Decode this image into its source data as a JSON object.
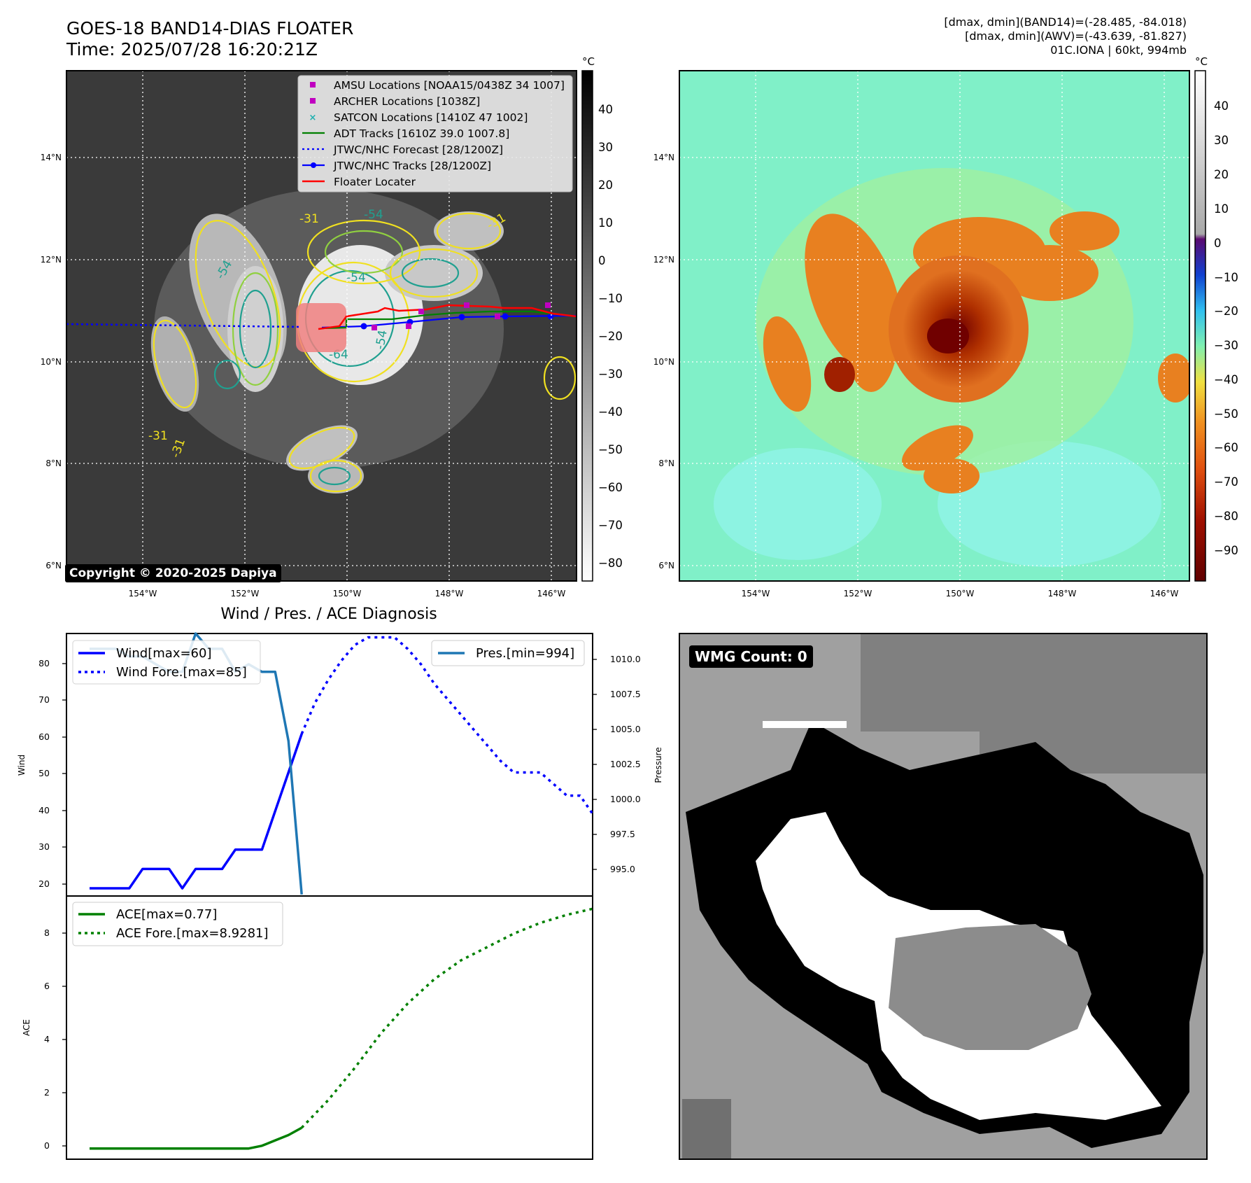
{
  "header": {
    "title_line1": "GOES-18 BAND14-DIAS FLOATER",
    "title_line2": "Time: 2025/07/28 16:20:21Z",
    "right_line1": "[dmax, dmin](BAND14)=(-28.485, -84.018)",
    "right_line2": "[dmax, dmin](AWV)=(-43.639, -81.827)",
    "right_line3": "01C.IONA | 60kt, 994mb"
  },
  "map": {
    "lat_labels": [
      "14°N",
      "12°N",
      "10°N",
      "8°N",
      "6°N"
    ],
    "lon_labels": [
      "154°W",
      "152°W",
      "150°W",
      "148°W",
      "146°W"
    ],
    "contour_labels": [
      "-31",
      "-31",
      "-54",
      "-54",
      "-64",
      "-54",
      "-31",
      "-54",
      "-31"
    ],
    "copyright": "Copyright © 2020-2025 Dapiya",
    "legend": [
      {
        "label": "AMSU Locations [NOAA15/0438Z 34 1007]",
        "marker": "square",
        "color": "#c000c0"
      },
      {
        "label": "ARCHER Locations [1038Z]",
        "marker": "square",
        "color": "#c000c0"
      },
      {
        "label": "SATCON Locations [1410Z 47 1002]",
        "marker": "x",
        "color": "#20b0b0"
      },
      {
        "label": "ADT Tracks [1610Z 39.0 1007.8]",
        "marker": "line",
        "color": "#008000"
      },
      {
        "label": "JTWC/NHC Forecast [28/1200Z]",
        "marker": "dotted",
        "color": "#0000ff"
      },
      {
        "label": "JTWC/NHC Tracks [28/1200Z]",
        "marker": "line-dot",
        "color": "#0000ff"
      },
      {
        "label": "Floater Locater",
        "marker": "line",
        "color": "#ff0000"
      }
    ]
  },
  "colorbar_ir": {
    "unit": "°C",
    "ticks": [
      "40",
      "30",
      "20",
      "10",
      "0",
      "−10",
      "−20",
      "−30",
      "−40",
      "−50",
      "−60",
      "−70",
      "−80"
    ]
  },
  "colorbar_color": {
    "unit": "°C",
    "ticks": [
      "40",
      "30",
      "20",
      "10",
      "0",
      "−10",
      "−20",
      "−30",
      "−40",
      "−50",
      "−60",
      "−70",
      "−80",
      "−90"
    ]
  },
  "diagnosis": {
    "title": "Wind / Pres. / ACE Diagnosis",
    "wind_ylabel": "Wind",
    "pres_ylabel": "Pressure",
    "ace_ylabel": "ACE",
    "wind_ticks": [
      "80",
      "70",
      "60",
      "50",
      "40",
      "30",
      "20"
    ],
    "pres_ticks": [
      "1010.0",
      "1007.5",
      "1005.0",
      "1002.5",
      "1000.0",
      "997.5",
      "995.0"
    ],
    "ace_ticks": [
      "8",
      "6",
      "4",
      "2",
      "0"
    ],
    "legend_wind": "Wind[max=60]",
    "legend_wind_fore": "Wind Fore.[max=85]",
    "legend_pres": "Pres.[min=994]",
    "legend_ace": "ACE[max=0.77]",
    "legend_ace_fore": "ACE Fore.[max=8.9281]"
  },
  "wmg": {
    "label": "WMG Count: 0"
  },
  "colors": {
    "wind": "#0000ff",
    "pressure": "#1f77b4",
    "ace": "#008000",
    "contour_outer": "#f0e020",
    "contour_mid": "#90d040",
    "contour_inner": "#20a090"
  },
  "chart_data": [
    {
      "type": "line",
      "title": "Wind / Pres. / ACE Diagnosis",
      "ylabel": "Wind",
      "ylim": [
        18,
        86
      ],
      "series": [
        {
          "name": "Wind[max=60]",
          "style": "solid",
          "x": [
            0,
            1,
            2,
            3,
            4,
            5,
            6,
            7,
            8,
            9,
            10,
            11,
            12,
            13,
            14,
            15,
            16
          ],
          "y": [
            20,
            20,
            20,
            20,
            25,
            25,
            25,
            20,
            25,
            25,
            25,
            30,
            30,
            30,
            40,
            50,
            60
          ]
        },
        {
          "name": "Wind Fore.[max=85]",
          "style": "dotted",
          "x": [
            16,
            17,
            18,
            19,
            20,
            21,
            22,
            23,
            24,
            25,
            26,
            27,
            28,
            29,
            30,
            31,
            32,
            33,
            34,
            35,
            36,
            37,
            38
          ],
          "y": [
            60,
            68,
            74,
            79,
            83,
            85,
            85,
            85,
            82,
            78,
            73,
            69,
            65,
            61,
            57,
            53,
            50,
            50,
            50,
            47,
            44,
            44,
            39
          ]
        }
      ]
    },
    {
      "type": "line",
      "ylabel": "Pressure",
      "ylim": [
        993.9,
        1011
      ],
      "series": [
        {
          "name": "Pres.[min=994]",
          "x": [
            0,
            1,
            2,
            3,
            4,
            5,
            6,
            7,
            8,
            9,
            10,
            11,
            12,
            13,
            14,
            15,
            16
          ],
          "y": [
            1010,
            1010,
            1010,
            1009.5,
            1009.5,
            1009,
            1008.5,
            1008.5,
            1011,
            1010,
            1010,
            1008.5,
            1009,
            1008.5,
            1008.5,
            1004,
            994
          ]
        }
      ]
    },
    {
      "type": "line",
      "ylabel": "ACE",
      "ylim": [
        -0.4,
        9.4
      ],
      "series": [
        {
          "name": "ACE[max=0.77]",
          "style": "solid",
          "x": [
            0,
            2,
            4,
            6,
            8,
            10,
            12,
            13,
            14,
            15,
            16
          ],
          "y": [
            0,
            0,
            0,
            0,
            0,
            0,
            0,
            0.1,
            0.3,
            0.5,
            0.77
          ]
        },
        {
          "name": "ACE Fore.[max=8.9281]",
          "style": "dotted",
          "x": [
            16,
            18,
            20,
            22,
            24,
            26,
            28,
            30,
            32,
            34,
            36,
            38
          ],
          "y": [
            0.77,
            1.8,
            3.0,
            4.3,
            5.4,
            6.3,
            7.0,
            7.5,
            8.0,
            8.4,
            8.7,
            8.93
          ]
        }
      ]
    }
  ]
}
